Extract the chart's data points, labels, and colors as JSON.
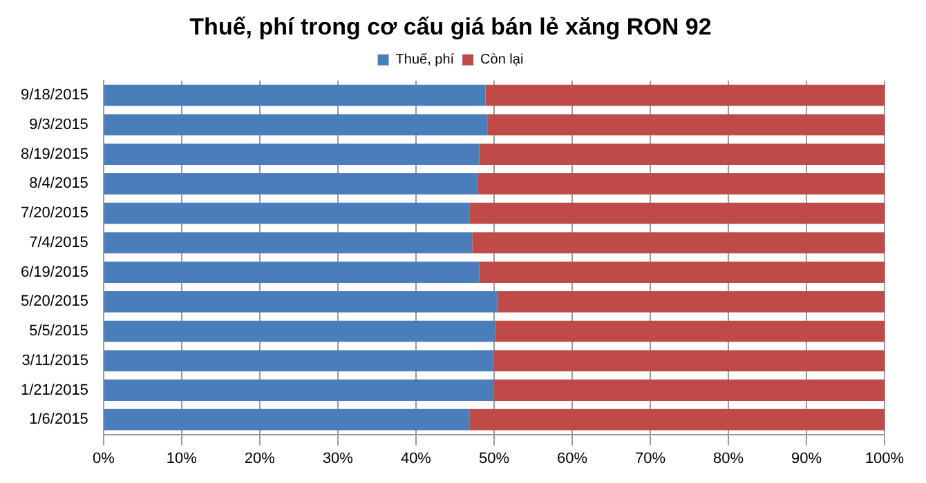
{
  "chart_data": {
    "type": "bar",
    "orientation": "horizontal",
    "stacked": true,
    "title": "Thuế, phí trong cơ cấu giá bán lẻ xăng RON 92",
    "categories": [
      "9/18/2015",
      "9/3/2015",
      "8/19/2015",
      "8/4/2015",
      "7/20/2015",
      "7/4/2015",
      "6/19/2015",
      "5/20/2015",
      "5/5/2015",
      "3/11/2015",
      "1/21/2015",
      "1/6/2015"
    ],
    "series": [
      {
        "name": "Thuế, phí",
        "color": "#4a7ebb",
        "values": [
          48.9,
          49.2,
          48.1,
          47.9,
          46.9,
          47.2,
          48.1,
          50.4,
          50.2,
          49.9,
          50.0,
          46.9
        ]
      },
      {
        "name": "Còn lại",
        "color": "#be4b48",
        "values": [
          51.1,
          50.8,
          51.9,
          52.1,
          53.1,
          52.8,
          51.9,
          49.6,
          49.8,
          50.1,
          50.0,
          53.1
        ]
      }
    ],
    "xlim": [
      0,
      100
    ],
    "xticks": [
      {
        "value": 0,
        "label": "0%"
      },
      {
        "value": 10,
        "label": "10%"
      },
      {
        "value": 20,
        "label": "20%"
      },
      {
        "value": 30,
        "label": "30%"
      },
      {
        "value": 40,
        "label": "40%"
      },
      {
        "value": 50,
        "label": "50%"
      },
      {
        "value": 60,
        "label": "60%"
      },
      {
        "value": 70,
        "label": "70%"
      },
      {
        "value": 80,
        "label": "80%"
      },
      {
        "value": 90,
        "label": "90%"
      },
      {
        "value": 100,
        "label": "100%"
      }
    ],
    "grid": "x",
    "legend": "top"
  }
}
